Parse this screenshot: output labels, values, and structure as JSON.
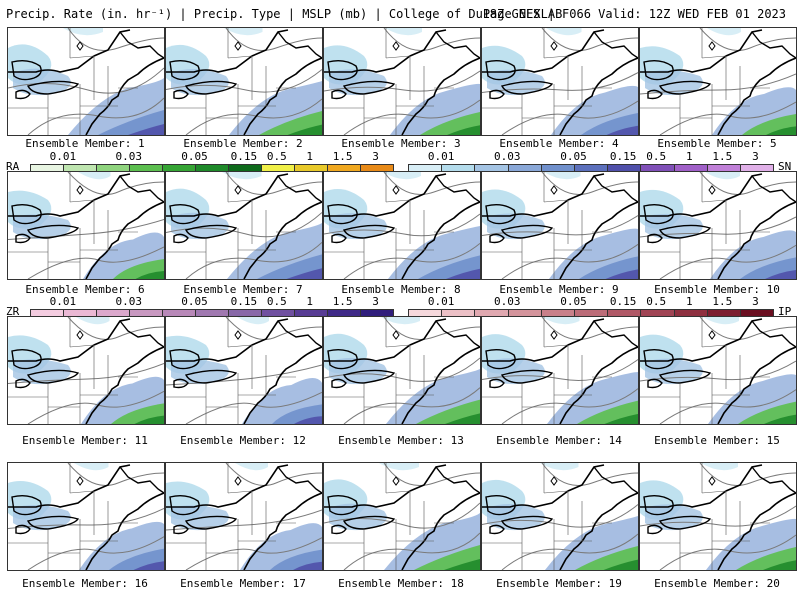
{
  "header": {
    "left": "Precip. Rate (in. hr⁻¹) | Precip. Type | MSLP (mb) | College of DuPage NEXLAB",
    "right": "18Z GEFS | F066 Valid: 12Z WED FEB 01 2023"
  },
  "colors": {
    "rain": [
      "#e8f5e2",
      "#bfe6b0",
      "#8fd47e",
      "#5cbf4f",
      "#36a535",
      "#1f8a2a",
      "#0e6b1c",
      "#f0f048",
      "#e8c92a",
      "#f0a820",
      "#e88a18"
    ],
    "snow": [
      "#d8eef6",
      "#b4dcec",
      "#a4c4e4",
      "#8aa8d8",
      "#7090cc",
      "#5c70bc",
      "#5050aa",
      "#8050b8",
      "#a060c8",
      "#c080d8",
      "#e0b0e8"
    ],
    "freezing_rain": [
      "#f4cce0",
      "#eab8d4",
      "#dca8cc",
      "#c898c0",
      "#b888b8",
      "#a078b0",
      "#8868a8",
      "#7050a0",
      "#583c94",
      "#402a88",
      "#301e7c"
    ],
    "sleet": [
      "#f6d8dc",
      "#ecc0c6",
      "#e0a8b0",
      "#d4949c",
      "#c8808a",
      "#bc6c78",
      "#b05866",
      "#a04454",
      "#8e3040",
      "#7c1e30",
      "#6a0e20"
    ]
  },
  "legends": [
    {
      "left_label": "RA",
      "right_label": "SN",
      "left_ticks": [
        "0.01",
        "0.03",
        "0.05",
        "0.15",
        "0.5",
        "1",
        "1.5",
        "3"
      ],
      "right_ticks": [
        "0.01",
        "0.03",
        "0.05",
        "0.15",
        "0.5",
        "1",
        "1.5",
        "3"
      ]
    },
    {
      "left_label": "ZR",
      "right_label": "IP",
      "left_ticks": [
        "0.01",
        "0.03",
        "0.05",
        "0.15",
        "0.5",
        "1",
        "1.5",
        "3"
      ],
      "right_ticks": [
        "0.01",
        "0.03",
        "0.05",
        "0.15",
        "0.5",
        "1",
        "1.5",
        "3"
      ]
    }
  ],
  "members": [
    {
      "caption": "Ensemble Member: 1",
      "ocean_band": "snow"
    },
    {
      "caption": "Ensemble Member: 2",
      "ocean_band": "rain"
    },
    {
      "caption": "Ensemble Member: 3",
      "ocean_band": "rain"
    },
    {
      "caption": "Ensemble Member: 4",
      "ocean_band": "snow"
    },
    {
      "caption": "Ensemble Member: 5",
      "ocean_band": "rain"
    },
    {
      "caption": "Ensemble Member: 6",
      "ocean_band": "rain"
    },
    {
      "caption": "Ensemble Member: 7",
      "ocean_band": "snow"
    },
    {
      "caption": "Ensemble Member: 8",
      "ocean_band": "snow"
    },
    {
      "caption": "Ensemble Member: 9",
      "ocean_band": "snow"
    },
    {
      "caption": "Ensemble Member: 10",
      "ocean_band": "snow"
    },
    {
      "caption": "Ensemble Member: 11",
      "ocean_band": "rain"
    },
    {
      "caption": "Ensemble Member: 12",
      "ocean_band": "snow"
    },
    {
      "caption": "Ensemble Member: 13",
      "ocean_band": "rain"
    },
    {
      "caption": "Ensemble Member: 14",
      "ocean_band": "rain"
    },
    {
      "caption": "Ensemble Member: 15",
      "ocean_band": "rain"
    },
    {
      "caption": "Ensemble Member: 16",
      "ocean_band": "snow"
    },
    {
      "caption": "Ensemble Member: 17",
      "ocean_band": "snow"
    },
    {
      "caption": "Ensemble Member: 18",
      "ocean_band": "rain"
    },
    {
      "caption": "Ensemble Member: 19",
      "ocean_band": "rain"
    },
    {
      "caption": "Ensemble Member: 20",
      "ocean_band": "rain"
    }
  ]
}
